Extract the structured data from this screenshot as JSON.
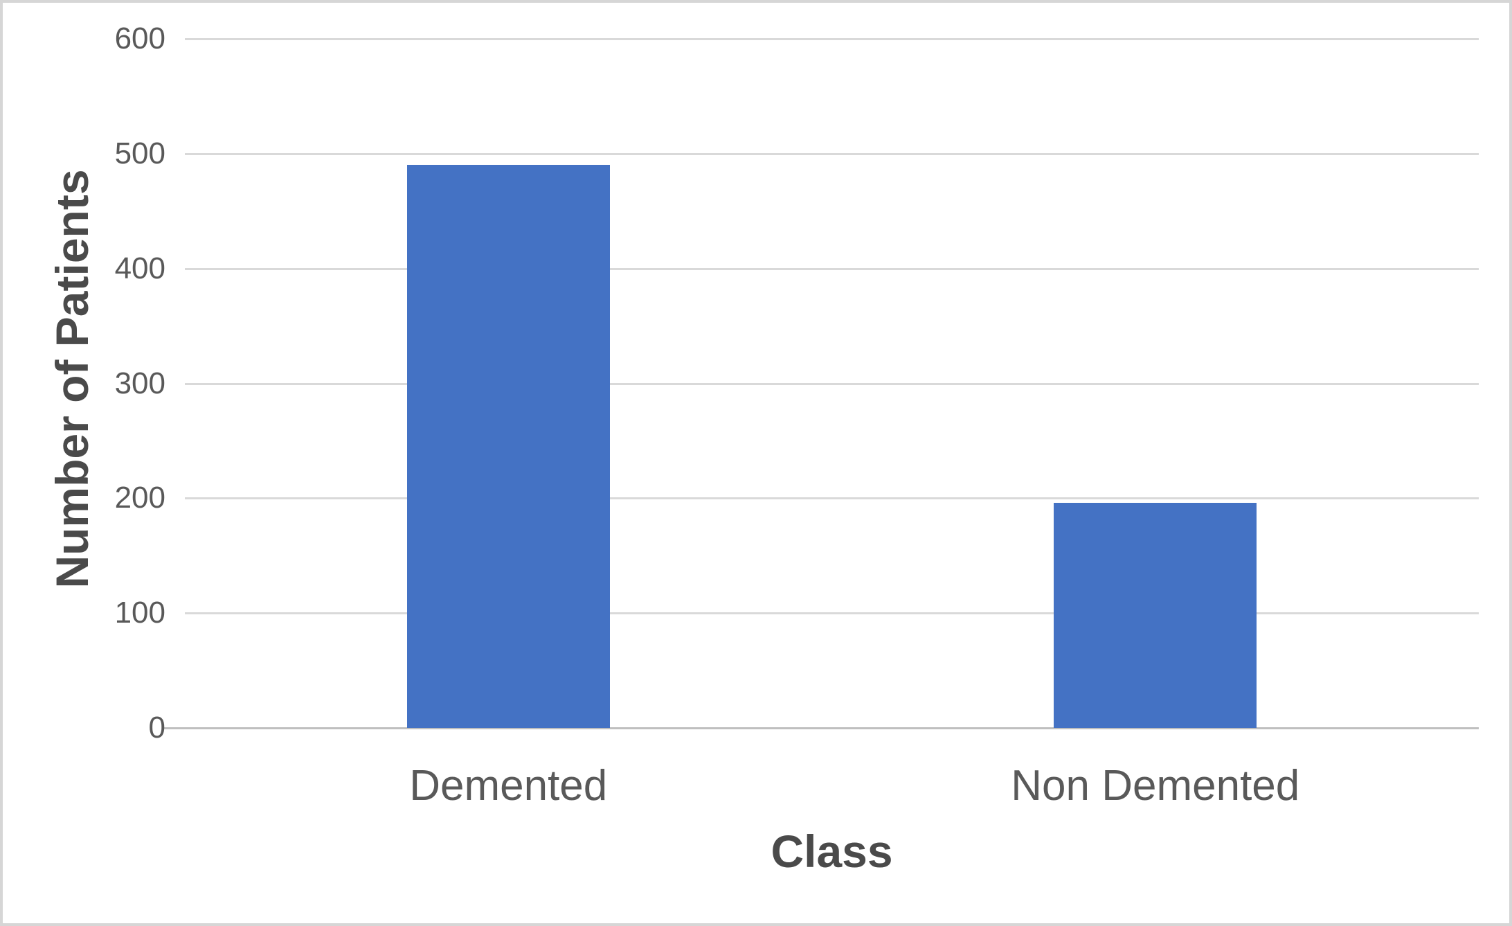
{
  "chart_data": {
    "type": "bar",
    "categories": [
      "Demented",
      "Non Demented"
    ],
    "values": [
      490,
      196
    ],
    "title": "",
    "xlabel": "Class",
    "ylabel": "Number of Patients",
    "ylim": [
      0,
      600
    ],
    "ytick_step": 100,
    "yticks": [
      0,
      100,
      200,
      300,
      400,
      500,
      600
    ],
    "grid": "horizontal-only",
    "legend": "none",
    "colors": {
      "bar_fill": "#4472C4",
      "gridline": "#d9d9d9",
      "axis_line": "#bfbfbf",
      "tick_text": "#595959",
      "title_text": "#4a4a4a"
    }
  }
}
